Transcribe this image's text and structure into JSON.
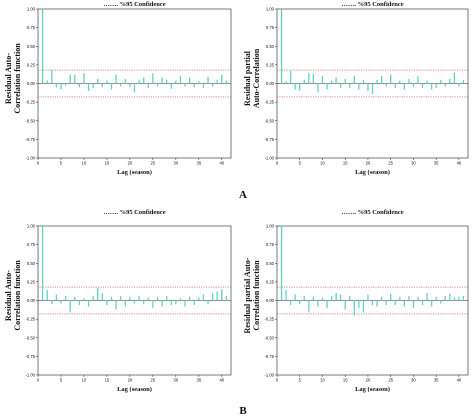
{
  "panel_labels": [
    "A",
    "B"
  ],
  "colors": {
    "bar": "#5fd3c3",
    "conf": "#cc4444",
    "axis": "#222222"
  },
  "chart_data": [
    {
      "type": "bar",
      "legend": "……. %95 Confidence",
      "xlabel": "Lag (season)",
      "ylabel_lines": [
        "Residual Auto-",
        "Correlation function"
      ],
      "xlim": [
        0,
        42
      ],
      "ylim": [
        -1.0,
        1.0
      ],
      "xticks": [
        0,
        5,
        10,
        15,
        20,
        25,
        30,
        35,
        40
      ],
      "yticks": [
        "1.00",
        "0.75",
        "0.50",
        "0.25",
        "0.00",
        "-0.25",
        "-0.50",
        "-0.75",
        "-1.00"
      ],
      "yticks_values": [
        1.0,
        0.75,
        0.5,
        0.25,
        0.0,
        -0.25,
        -0.5,
        -0.75,
        -1.0
      ],
      "confidence": [
        0.18,
        -0.18
      ],
      "x": [
        1,
        2,
        3,
        4,
        5,
        6,
        7,
        8,
        9,
        10,
        11,
        12,
        13,
        14,
        15,
        16,
        17,
        18,
        19,
        20,
        21,
        22,
        23,
        24,
        25,
        26,
        27,
        28,
        29,
        30,
        31,
        32,
        33,
        34,
        35,
        36,
        37,
        38,
        39,
        40,
        41
      ],
      "values": [
        1.0,
        0.04,
        0.18,
        -0.05,
        -0.08,
        -0.03,
        0.12,
        0.12,
        -0.05,
        0.14,
        -0.1,
        -0.06,
        0.06,
        -0.05,
        0.04,
        -0.08,
        0.12,
        -0.04,
        0.06,
        -0.05,
        -0.12,
        0.05,
        0.08,
        -0.06,
        0.14,
        -0.04,
        0.08,
        0.05,
        -0.07,
        0.04,
        0.1,
        -0.04,
        0.08,
        -0.05,
        0.03,
        -0.06,
        0.09,
        -0.04,
        0.05,
        0.12,
        0.04
      ]
    },
    {
      "type": "bar",
      "legend": "……. %95 Confidence",
      "xlabel": "Lag (season)",
      "ylabel_lines": [
        "Residual partial",
        "Auto-Correlation"
      ],
      "xlim": [
        0,
        42
      ],
      "ylim": [
        -1.0,
        1.0
      ],
      "xticks": [
        0,
        5,
        10,
        15,
        20,
        25,
        30,
        35,
        40
      ],
      "yticks": [
        "1.00",
        "0.75",
        "0.50",
        "0.25",
        "0.00",
        "-0.25",
        "-0.50",
        "-0.75",
        "-1.00"
      ],
      "yticks_values": [
        1.0,
        0.75,
        0.5,
        0.25,
        0.0,
        -0.25,
        -0.5,
        -0.75,
        -1.0
      ],
      "confidence": [
        0.18,
        -0.18
      ],
      "x": [
        1,
        2,
        3,
        4,
        5,
        6,
        7,
        8,
        9,
        10,
        11,
        12,
        13,
        14,
        15,
        16,
        17,
        18,
        19,
        20,
        21,
        22,
        23,
        24,
        25,
        26,
        27,
        28,
        29,
        30,
        31,
        32,
        33,
        34,
        35,
        36,
        37,
        38,
        39,
        40,
        41
      ],
      "values": [
        1.0,
        0.03,
        0.17,
        -0.08,
        -0.1,
        0.05,
        0.14,
        0.13,
        -0.12,
        0.1,
        -0.08,
        0.04,
        0.08,
        -0.06,
        0.06,
        -0.06,
        0.1,
        -0.08,
        0.05,
        -0.1,
        -0.14,
        0.05,
        0.1,
        -0.04,
        0.12,
        -0.06,
        0.04,
        -0.08,
        0.06,
        -0.05,
        0.1,
        -0.06,
        0.04,
        -0.08,
        -0.06,
        0.05,
        -0.04,
        0.06,
        0.15,
        -0.04,
        0.05
      ]
    },
    {
      "type": "bar",
      "legend": "……. %95 Confidence",
      "xlabel": "Lag (season)",
      "ylabel_lines": [
        "Residual Auto-",
        "Correlation function"
      ],
      "xlim": [
        0,
        42
      ],
      "ylim": [
        -1.0,
        1.0
      ],
      "xticks": [
        0,
        5,
        10,
        15,
        20,
        25,
        30,
        35,
        40
      ],
      "yticks": [
        "1.00",
        "0.75",
        "0.50",
        "0.25",
        "0.00",
        "-0.25",
        "-0.50",
        "-0.75",
        "-1.00"
      ],
      "yticks_values": [
        1.0,
        0.75,
        0.5,
        0.25,
        0.0,
        -0.25,
        -0.5,
        -0.75,
        -1.0
      ],
      "confidence": [
        0.18,
        -0.18
      ],
      "x": [
        1,
        2,
        3,
        4,
        5,
        6,
        7,
        8,
        9,
        10,
        11,
        12,
        13,
        14,
        15,
        16,
        17,
        18,
        19,
        20,
        21,
        22,
        23,
        24,
        25,
        26,
        27,
        28,
        29,
        30,
        31,
        32,
        33,
        34,
        35,
        36,
        37,
        38,
        39,
        40,
        41
      ],
      "values": [
        1.0,
        0.14,
        -0.05,
        0.08,
        -0.04,
        0.06,
        -0.16,
        0.05,
        -0.06,
        0.03,
        -0.08,
        0.06,
        0.17,
        0.1,
        -0.06,
        0.05,
        -0.12,
        0.06,
        -0.08,
        0.05,
        -0.04,
        0.06,
        -0.05,
        0.04,
        -0.1,
        0.05,
        -0.08,
        0.06,
        -0.06,
        -0.05,
        0.03,
        -0.08,
        0.05,
        -0.06,
        0.04,
        0.08,
        -0.05,
        0.1,
        0.12,
        0.15,
        0.06
      ]
    },
    {
      "type": "bar",
      "legend": "……. %95 Confidence",
      "xlabel": "Lag (season)",
      "ylabel_lines": [
        "Residual partial Auto-",
        "Correlation function"
      ],
      "xlim": [
        0,
        42
      ],
      "ylim": [
        -1.0,
        1.0
      ],
      "xticks": [
        0,
        5,
        10,
        15,
        20,
        25,
        30,
        35,
        40
      ],
      "yticks": [
        "1.00",
        "0.75",
        "0.50",
        "0.25",
        "0.00",
        "-0.25",
        "-0.50",
        "-0.75",
        "-1.00"
      ],
      "yticks_values": [
        1.0,
        0.75,
        0.5,
        0.25,
        0.0,
        -0.25,
        -0.5,
        -0.75,
        -1.0
      ],
      "confidence": [
        0.18,
        -0.18
      ],
      "x": [
        1,
        2,
        3,
        4,
        5,
        6,
        7,
        8,
        9,
        10,
        11,
        12,
        13,
        14,
        15,
        16,
        17,
        18,
        19,
        20,
        21,
        22,
        23,
        24,
        25,
        26,
        27,
        28,
        29,
        30,
        31,
        32,
        33,
        34,
        35,
        36,
        37,
        38,
        39,
        40,
        41
      ],
      "values": [
        1.0,
        0.14,
        -0.06,
        0.08,
        -0.05,
        0.06,
        -0.16,
        0.05,
        -0.08,
        0.04,
        -0.1,
        0.06,
        0.1,
        0.08,
        -0.12,
        0.06,
        -0.2,
        -0.1,
        -0.16,
        0.08,
        -0.06,
        -0.08,
        0.05,
        -0.06,
        0.09,
        -0.06,
        0.05,
        -0.08,
        0.06,
        -0.1,
        0.05,
        -0.06,
        0.1,
        -0.08,
        0.05,
        -0.04,
        0.06,
        0.09,
        0.04,
        0.05,
        0.06
      ]
    }
  ]
}
